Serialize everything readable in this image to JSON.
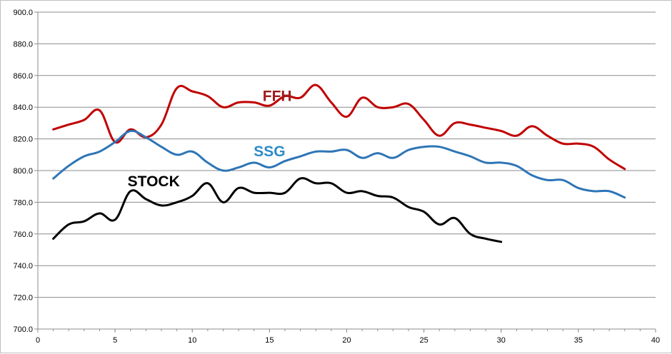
{
  "chart_data": {
    "type": "line",
    "title": "",
    "xlabel": "",
    "ylabel": "",
    "xlim": [
      0,
      40
    ],
    "ylim": [
      700,
      900
    ],
    "x_ticks": [
      0,
      5,
      10,
      15,
      20,
      25,
      30,
      35,
      40
    ],
    "y_ticks": [
      700,
      720,
      740,
      760,
      780,
      800,
      820,
      840,
      860,
      880,
      900
    ],
    "y_tick_labels": [
      "700.0",
      "720.0",
      "740.0",
      "760.0",
      "780.0",
      "800.0",
      "820.0",
      "840.0",
      "860.0",
      "880.0",
      "900.0"
    ],
    "grid": "horizontal",
    "legend": "none",
    "series": [
      {
        "name": "FFH",
        "color": "#c00000",
        "x": [
          1,
          2,
          3,
          4,
          5,
          6,
          7,
          8,
          9,
          10,
          11,
          12,
          13,
          14,
          15,
          16,
          17,
          18,
          19,
          20,
          21,
          22,
          23,
          24,
          25,
          26,
          27,
          28,
          29,
          30,
          31,
          32,
          33,
          34,
          35,
          36,
          37,
          38
        ],
        "y": [
          826,
          829,
          832,
          838,
          818,
          826,
          821,
          829,
          852,
          850,
          847,
          840,
          843,
          843,
          841,
          847,
          846,
          854,
          843,
          834,
          846,
          840,
          840,
          842,
          832,
          822,
          830,
          829,
          827,
          825,
          822,
          828,
          822,
          817,
          817,
          815,
          807,
          801
        ]
      },
      {
        "name": "SSG",
        "color": "#2e75b6",
        "x": [
          1,
          2,
          3,
          4,
          5,
          6,
          7,
          8,
          9,
          10,
          11,
          12,
          13,
          14,
          15,
          16,
          17,
          18,
          19,
          20,
          21,
          22,
          23,
          24,
          25,
          26,
          27,
          28,
          29,
          30,
          31,
          32,
          33,
          34,
          35,
          36,
          37,
          38
        ],
        "y": [
          795,
          803,
          809,
          812,
          818,
          825,
          821,
          815,
          810,
          812,
          805,
          800,
          802,
          805,
          802,
          806,
          809,
          812,
          812,
          813,
          808,
          811,
          808,
          813,
          815,
          815,
          812,
          809,
          805,
          805,
          803,
          797,
          794,
          794,
          789,
          787,
          787,
          783
        ]
      },
      {
        "name": "STOCK",
        "color": "#000000",
        "x": [
          1,
          2,
          3,
          4,
          5,
          6,
          7,
          8,
          9,
          10,
          11,
          12,
          13,
          14,
          15,
          16,
          17,
          18,
          19,
          20,
          21,
          22,
          23,
          24,
          25,
          26,
          27,
          28,
          29,
          30
        ],
        "y": [
          757,
          766,
          768,
          773,
          769,
          787,
          782,
          778,
          780,
          784,
          792,
          780,
          789,
          786,
          786,
          786,
          795,
          792,
          792,
          786,
          787,
          784,
          783,
          777,
          774,
          766,
          770,
          760,
          757,
          755
        ]
      }
    ],
    "annotations": [
      {
        "text": "FFH",
        "x": 15.5,
        "y": 844,
        "color": "#9e1c1c"
      },
      {
        "text": "SSG",
        "x": 15,
        "y": 809,
        "color": "#2e8bc9"
      },
      {
        "text": "STOCK",
        "x": 7.5,
        "y": 790,
        "color": "#000000"
      }
    ]
  }
}
